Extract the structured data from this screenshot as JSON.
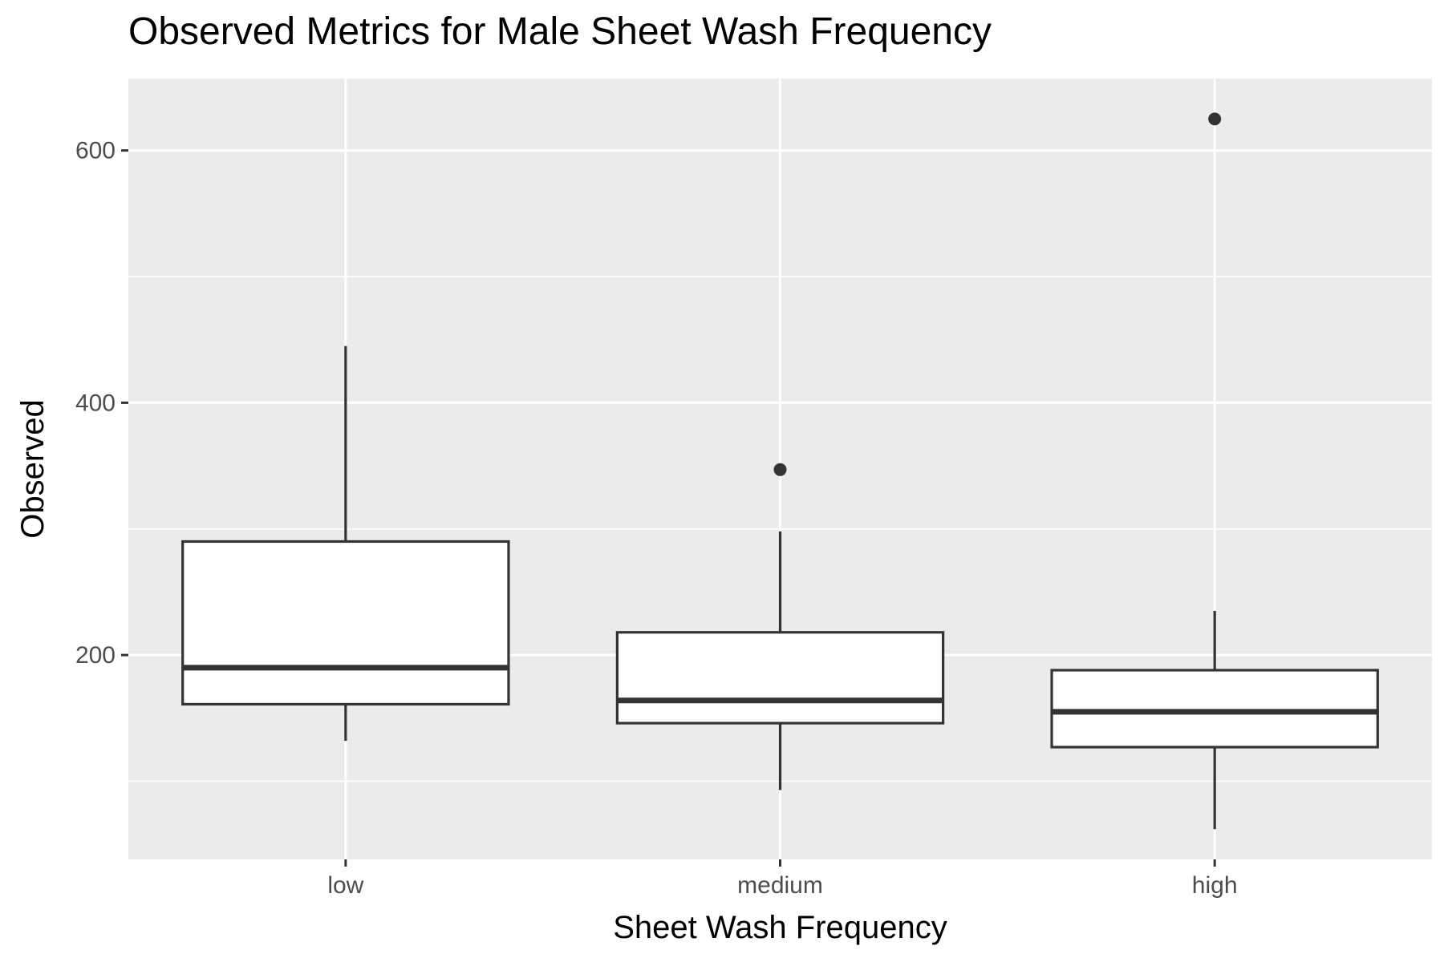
{
  "chart_data": {
    "type": "box",
    "title": "Observed Metrics for Male Sheet Wash Frequency",
    "xlabel": "Sheet Wash Frequency",
    "ylabel": "Observed",
    "categories": [
      "low",
      "medium",
      "high"
    ],
    "ylim": [
      38,
      657
    ],
    "y_ticks": [
      200,
      400,
      600
    ],
    "y_minor_ticks": [
      100,
      300,
      500
    ],
    "grid": true,
    "boxes": [
      {
        "category": "low",
        "min": 132,
        "q1": 161,
        "median": 190,
        "q3": 290,
        "max": 445,
        "outliers": []
      },
      {
        "category": "medium",
        "min": 93,
        "q1": 146,
        "median": 164,
        "q3": 218,
        "max": 298,
        "outliers": [
          347
        ]
      },
      {
        "category": "high",
        "min": 62,
        "q1": 127,
        "median": 155,
        "q3": 188,
        "max": 235,
        "outliers": [
          625
        ]
      }
    ],
    "colors": {
      "panel": "#ebebeb",
      "grid": "#ffffff",
      "box_line": "#333333",
      "box_fill": "#ffffff",
      "tick_text": "#4d4d4d"
    }
  }
}
